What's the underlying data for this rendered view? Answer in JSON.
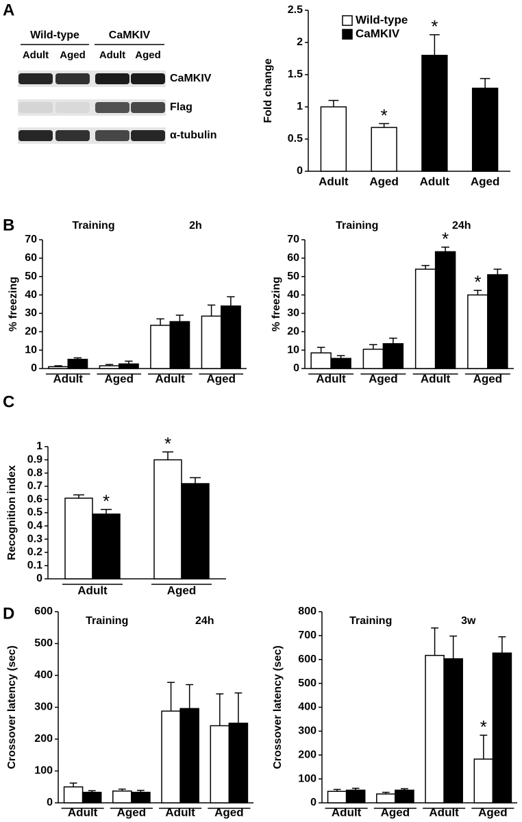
{
  "panel_labels": [
    "A",
    "B",
    "C",
    "D"
  ],
  "blot": {
    "groups": [
      "Wild-type",
      "CaMKIV"
    ],
    "lanes": [
      "Adult",
      "Aged",
      "Adult",
      "Aged"
    ],
    "rows": [
      "CaMKIV",
      "Flag",
      "α-tubulin"
    ]
  },
  "chart_data": [
    {
      "type": "bar",
      "y_label": "Fold change",
      "ylim": [
        0,
        2.5
      ],
      "yticks": [
        0,
        0.5,
        1,
        1.5,
        2,
        2.5
      ],
      "legend": "top-left",
      "categories": [
        "Adult",
        "Aged",
        "Adult",
        "Aged"
      ],
      "series": [
        {
          "name": "Wild-type",
          "color": "#ffffff",
          "values": [
            1.0,
            0.68,
            null,
            null
          ],
          "errors": [
            0.1,
            0.06,
            null,
            null
          ],
          "annotations": [
            null,
            "*",
            null,
            null
          ]
        },
        {
          "name": "CaMKIV",
          "color": "#000000",
          "values": [
            null,
            null,
            1.8,
            1.29
          ],
          "errors": [
            null,
            null,
            0.32,
            0.15
          ],
          "annotations": [
            null,
            null,
            "*",
            null
          ]
        }
      ]
    },
    {
      "type": "bar",
      "y_label": "% freezing",
      "ylim": [
        0,
        70
      ],
      "yticks": [
        0,
        10,
        20,
        30,
        40,
        50,
        60,
        70
      ],
      "sections": [
        "Training",
        "2h"
      ],
      "categories": [
        "Adult",
        "Aged",
        "Adult",
        "Aged"
      ],
      "series": [
        {
          "color": "#ffffff",
          "values": [
            1.0,
            1.5,
            23.5,
            28.5
          ],
          "errors": [
            0.5,
            0.7,
            3.5,
            6
          ]
        },
        {
          "color": "#000000",
          "values": [
            5.0,
            2.5,
            25.5,
            34
          ],
          "errors": [
            0.8,
            1.5,
            3.5,
            5
          ]
        }
      ]
    },
    {
      "type": "bar",
      "y_label": "% freezing",
      "ylim": [
        0,
        70
      ],
      "yticks": [
        0,
        10,
        20,
        30,
        40,
        50,
        60,
        70
      ],
      "sections": [
        "Training",
        "24h"
      ],
      "categories": [
        "Adult",
        "Aged",
        "Adult",
        "Aged"
      ],
      "series": [
        {
          "color": "#ffffff",
          "values": [
            8.5,
            10.5,
            54,
            40
          ],
          "errors": [
            3,
            2.5,
            2,
            2.5
          ],
          "annotations": [
            null,
            null,
            null,
            "*"
          ]
        },
        {
          "color": "#000000",
          "values": [
            5.5,
            13.5,
            63.5,
            51
          ],
          "errors": [
            1.5,
            3,
            2.5,
            3
          ],
          "annotations": [
            null,
            null,
            "*",
            null
          ]
        }
      ]
    },
    {
      "type": "bar",
      "y_label": "Recognition index",
      "ylim": [
        0,
        1
      ],
      "yticks": [
        0,
        0.1,
        0.2,
        0.3,
        0.4,
        0.5,
        0.6,
        0.7,
        0.8,
        0.9,
        1
      ],
      "categories": [
        "Adult",
        "Aged"
      ],
      "series": [
        {
          "color": "#ffffff",
          "values": [
            0.61,
            0.9
          ],
          "errors": [
            0.025,
            0.06
          ],
          "annotations": [
            null,
            "*"
          ]
        },
        {
          "color": "#000000",
          "values": [
            0.49,
            0.72
          ],
          "errors": [
            0.035,
            0.045
          ],
          "annotations": [
            "*",
            null
          ]
        }
      ]
    },
    {
      "type": "bar",
      "y_label": "Crossover latency (sec)",
      "ylim": [
        0,
        600
      ],
      "yticks": [
        0,
        100,
        200,
        300,
        400,
        500,
        600
      ],
      "sections": [
        "Training",
        "24h"
      ],
      "categories": [
        "Adult",
        "Aged",
        "Adult",
        "Aged"
      ],
      "series": [
        {
          "color": "#ffffff",
          "values": [
            50,
            37,
            288,
            242
          ],
          "errors": [
            12,
            6,
            90,
            100
          ]
        },
        {
          "color": "#000000",
          "values": [
            33,
            33,
            296,
            250
          ],
          "errors": [
            5,
            6,
            75,
            95
          ]
        }
      ]
    },
    {
      "type": "bar",
      "y_label": "Crossover latency (sec)",
      "ylim": [
        0,
        800
      ],
      "yticks": [
        0,
        100,
        200,
        300,
        400,
        500,
        600,
        700,
        800
      ],
      "sections": [
        "Training",
        "3w"
      ],
      "categories": [
        "Adult",
        "Aged",
        "Adult",
        "Aged"
      ],
      "series": [
        {
          "color": "#ffffff",
          "values": [
            48,
            37,
            617,
            183
          ],
          "errors": [
            8,
            7,
            115,
            100
          ],
          "annotations": [
            null,
            null,
            null,
            "*"
          ]
        },
        {
          "color": "#000000",
          "values": [
            53,
            53,
            603,
            627
          ],
          "errors": [
            8,
            6,
            95,
            68
          ]
        }
      ]
    }
  ]
}
